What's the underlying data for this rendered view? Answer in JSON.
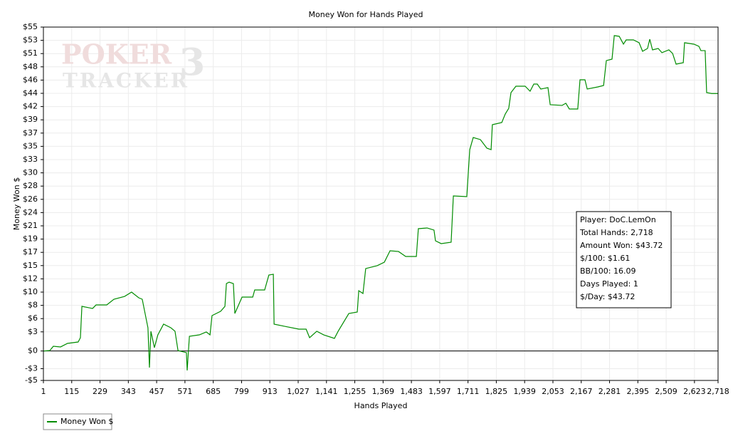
{
  "chart_data": {
    "type": "line",
    "title": "Money Won for Hands Played",
    "xlabel": "Hands Played",
    "ylabel": "Money Won $",
    "watermark": {
      "top": "POKER",
      "bottom": "TRACKER",
      "mark": "3"
    },
    "xlim": [
      1,
      2718
    ],
    "ylim": [
      -5,
      55
    ],
    "xticks": [
      1,
      115,
      229,
      343,
      457,
      571,
      685,
      799,
      913,
      {
        "value": 1027,
        "label": "1,027"
      },
      {
        "value": 1141,
        "label": "1,141"
      },
      {
        "value": 1255,
        "label": "1,255"
      },
      {
        "value": 1369,
        "label": "1,369"
      },
      {
        "value": 1483,
        "label": "1,483"
      },
      {
        "value": 1597,
        "label": "1,597"
      },
      {
        "value": 1711,
        "label": "1,711"
      },
      {
        "value": 1825,
        "label": "1,825"
      },
      {
        "value": 1939,
        "label": "1,939"
      },
      {
        "value": 2053,
        "label": "2,053"
      },
      {
        "value": 2167,
        "label": "2,167"
      },
      {
        "value": 2281,
        "label": "2,281"
      },
      {
        "value": 2395,
        "label": "2,395"
      },
      {
        "value": 2509,
        "label": "2,509"
      },
      {
        "value": 2623,
        "label": "2,623"
      },
      {
        "value": 2718,
        "label": "2,718"
      }
    ],
    "yticks": [
      {
        "value": 55,
        "label": "$55"
      },
      {
        "value": 52.75,
        "label": "$53"
      },
      {
        "value": 50.5,
        "label": "$51"
      },
      {
        "value": 48.25,
        "label": "$48"
      },
      {
        "value": 46,
        "label": "$46"
      },
      {
        "value": 43.75,
        "label": "$44"
      },
      {
        "value": 41.5,
        "label": "$42"
      },
      {
        "value": 39.25,
        "label": "$39"
      },
      {
        "value": 37,
        "label": "$37"
      },
      {
        "value": 34.75,
        "label": "$35"
      },
      {
        "value": 32.5,
        "label": "$33"
      },
      {
        "value": 30.25,
        "label": "$30"
      },
      {
        "value": 28,
        "label": "$28"
      },
      {
        "value": 25.75,
        "label": "$26"
      },
      {
        "value": 23.5,
        "label": "$24"
      },
      {
        "value": 21.25,
        "label": "$21"
      },
      {
        "value": 19,
        "label": "$19"
      },
      {
        "value": 16.75,
        "label": "$17"
      },
      {
        "value": 14.5,
        "label": "$15"
      },
      {
        "value": 12.25,
        "label": "$12"
      },
      {
        "value": 10,
        "label": "$10"
      },
      {
        "value": 7.75,
        "label": "$8"
      },
      {
        "value": 5.5,
        "label": "$6"
      },
      {
        "value": 3.25,
        "label": "$3"
      },
      {
        "value": 0,
        "label": "$0"
      },
      {
        "value": -3,
        "label": "-$3"
      },
      {
        "value": -5,
        "label": "-$5"
      }
    ],
    "grid": true,
    "hline": 0,
    "legend": "bottom-left",
    "series": [
      {
        "name": "Money Won $",
        "color": "#008c00",
        "x": [
          1,
          27,
          41,
          70,
          98,
          141,
          150,
          156,
          199,
          213,
          256,
          285,
          328,
          356,
          385,
          399,
          422,
          428,
          434,
          448,
          462,
          485,
          514,
          531,
          543,
          577,
          580,
          589,
          629,
          657,
          672,
          680,
          715,
          732,
          738,
          749,
          766,
          772,
          801,
          844,
          852,
          892,
          909,
          927,
          930,
          973,
          1030,
          1059,
          1073,
          1102,
          1130,
          1173,
          1188,
          1231,
          1265,
          1271,
          1288,
          1299,
          1345,
          1374,
          1397,
          1431,
          1460,
          1503,
          1511,
          1546,
          1574,
          1580,
          1603,
          1643,
          1652,
          1706,
          1718,
          1732,
          1761,
          1787,
          1804,
          1809,
          1847,
          1861,
          1875,
          1884,
          1904,
          1941,
          1961,
          1976,
          1990,
          2004,
          2033,
          2042,
          2090,
          2105,
          2119,
          2153,
          2162,
          2182,
          2191,
          2234,
          2257,
          2268,
          2291,
          2300,
          2320,
          2337,
          2348,
          2377,
          2400,
          2414,
          2434,
          2443,
          2454,
          2477,
          2492,
          2520,
          2535,
          2549,
          2578,
          2583,
          2621,
          2641,
          2649,
          2666,
          2672,
          2692,
          2718
        ],
        "values": [
          0,
          0.08,
          0.81,
          0.69,
          1.29,
          1.53,
          2.26,
          7.58,
          7.22,
          7.82,
          7.82,
          8.79,
          9.27,
          10.0,
          9.03,
          8.79,
          3.95,
          -2.82,
          3.35,
          0.57,
          2.74,
          4.56,
          3.95,
          3.35,
          0.08,
          -0.28,
          -3.3,
          2.5,
          2.74,
          3.23,
          2.74,
          6.01,
          6.74,
          7.58,
          11.45,
          11.69,
          11.45,
          6.37,
          9.15,
          9.15,
          10.36,
          10.36,
          12.9,
          13.03,
          4.56,
          4.19,
          3.71,
          3.71,
          2.26,
          3.35,
          2.74,
          2.14,
          3.35,
          6.37,
          6.61,
          10.24,
          9.76,
          14.0,
          14.48,
          15.08,
          17.02,
          16.9,
          16.05,
          16.05,
          20.77,
          20.89,
          20.53,
          18.71,
          18.23,
          18.47,
          26.33,
          26.21,
          34.19,
          36.25,
          35.89,
          34.44,
          34.19,
          38.43,
          38.79,
          40.24,
          41.21,
          43.87,
          44.96,
          44.96,
          44.11,
          45.32,
          45.32,
          44.48,
          44.72,
          41.82,
          41.7,
          42.07,
          41.09,
          41.09,
          46.05,
          46.05,
          44.48,
          44.84,
          45.08,
          49.31,
          49.56,
          53.55,
          53.43,
          52.1,
          52.82,
          52.82,
          52.34,
          50.89,
          51.37,
          52.94,
          51.13,
          51.37,
          50.65,
          51.13,
          50.52,
          48.71,
          48.95,
          52.34,
          52.1,
          51.73,
          51.0,
          51.0,
          43.87,
          43.72,
          43.72
        ]
      }
    ],
    "info_box": [
      "Player: DoC.LemOn",
      "Total Hands: 2,718",
      "Amount Won: $43.72",
      "$/100: $1.61",
      "BB/100: 16.09",
      "Days Played: 1",
      "$/Day: $43.72"
    ]
  }
}
